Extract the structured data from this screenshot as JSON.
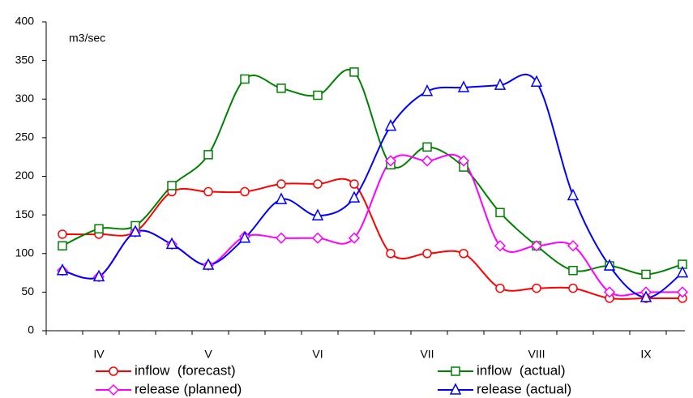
{
  "chart_data": {
    "type": "line",
    "unit_label": "m3/sec",
    "categories": [
      null,
      "IV",
      null,
      null,
      "V",
      null,
      null,
      "VI",
      null,
      null,
      "VII",
      null,
      null,
      "VIII",
      null,
      null,
      "IX",
      null
    ],
    "ylim": [
      0,
      400
    ],
    "yticks": [
      0,
      50,
      100,
      150,
      200,
      250,
      300,
      350,
      400
    ],
    "legend": "bottom",
    "smooth": true,
    "series": [
      {
        "name": "inflow  (forecast)",
        "color": "#ff0000",
        "marker": "circle",
        "values": [
          125,
          125,
          128,
          180,
          180,
          180,
          190,
          190,
          190,
          100,
          100,
          100,
          55,
          55,
          55,
          42,
          42,
          42
        ]
      },
      {
        "name": "inflow  (actual)",
        "color": "#008000",
        "marker": "square",
        "values": [
          110,
          132,
          136,
          188,
          228,
          326,
          314,
          305,
          335,
          215,
          238,
          212,
          153,
          110,
          78,
          84,
          73,
          86
        ]
      },
      {
        "name": "release (planned)",
        "color": "#ff00ff",
        "marker": "diamond",
        "values": [
          78,
          70,
          128,
          112,
          85,
          122,
          120,
          120,
          120,
          220,
          220,
          220,
          110,
          110,
          110,
          50,
          50,
          50
        ]
      },
      {
        "name": "release (actual)",
        "color": "#0000ff",
        "marker": "triangle",
        "values": [
          78,
          70,
          128,
          112,
          85,
          120,
          170,
          149,
          172,
          265,
          310,
          315,
          318,
          322,
          175,
          84,
          43,
          75
        ]
      }
    ]
  }
}
